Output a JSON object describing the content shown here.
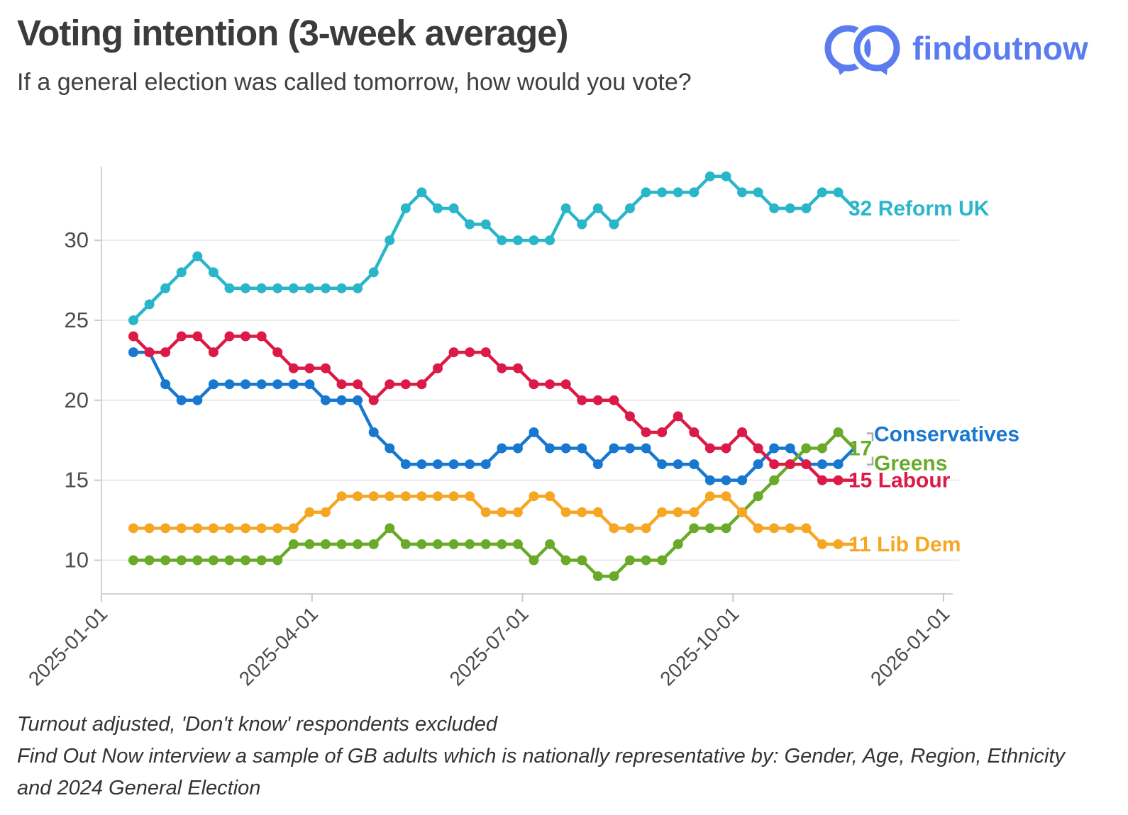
{
  "header": {
    "title": "Voting intention (3-week average)",
    "subtitle": "If a general election was called tomorrow, how would you vote?",
    "logo_text": "findoutnow"
  },
  "footer": {
    "lines": [
      "Turnout adjusted, 'Don't know' respondents excluded",
      "Find Out Now interview a sample of GB adults which is nationally representative by: Gender, Age, Region, Ethnicity",
      "and 2024 General Election"
    ]
  },
  "chart_data": {
    "type": "line",
    "title": "Voting intention (3-week average)",
    "xlabel": "",
    "ylabel": "",
    "grid": "horizontal",
    "legend_position": "right-end-labels",
    "x_tick_labels": [
      "2025-01-01",
      "2025-04-01",
      "2025-07-01",
      "2025-10-01",
      "2026-01-01"
    ],
    "y_ticks": [
      10,
      15,
      20,
      25,
      30
    ],
    "ylim": [
      8,
      35.5
    ],
    "shared_end_value_label": "17",
    "shared_end_value_for": [
      "Conservatives",
      "Greens"
    ],
    "series": [
      {
        "name": "Reform UK",
        "color": "#2ab6c9",
        "end_label": "32 Reform UK",
        "final_value": 32,
        "values": [
          25,
          26,
          27,
          28,
          29,
          28,
          27,
          27,
          27,
          27,
          27,
          27,
          27,
          27,
          27,
          28,
          30,
          32,
          33,
          32,
          32,
          31,
          31,
          30,
          30,
          30,
          30,
          32,
          31,
          32,
          31,
          32,
          33,
          33,
          33,
          33,
          34,
          34,
          33,
          33,
          32,
          32,
          32,
          33,
          33,
          32
        ]
      },
      {
        "name": "Conservatives",
        "color": "#1878cf",
        "end_label": "Conservatives",
        "final_value": 17,
        "values": [
          23,
          23,
          21,
          20,
          20,
          21,
          21,
          21,
          21,
          21,
          21,
          21,
          20,
          20,
          20,
          18,
          17,
          16,
          16,
          16,
          16,
          16,
          16,
          17,
          17,
          18,
          17,
          17,
          17,
          16,
          17,
          17,
          17,
          16,
          16,
          16,
          15,
          15,
          15,
          16,
          17,
          17,
          16,
          16,
          16,
          17
        ]
      },
      {
        "name": "Greens",
        "color": "#6aaa2a",
        "end_label": "Greens",
        "final_value": 17,
        "values": [
          10,
          10,
          10,
          10,
          10,
          10,
          10,
          10,
          10,
          10,
          11,
          11,
          11,
          11,
          11,
          11,
          12,
          11,
          11,
          11,
          11,
          11,
          11,
          11,
          11,
          10,
          11,
          10,
          10,
          9,
          9,
          10,
          10,
          10,
          11,
          12,
          12,
          12,
          13,
          14,
          15,
          16,
          17,
          17,
          18,
          17
        ]
      },
      {
        "name": "Labour",
        "color": "#dc1a47",
        "end_label": "15 Labour",
        "final_value": 15,
        "values": [
          24,
          23,
          23,
          24,
          24,
          23,
          24,
          24,
          24,
          23,
          22,
          22,
          22,
          21,
          21,
          20,
          21,
          21,
          21,
          22,
          23,
          23,
          23,
          22,
          22,
          21,
          21,
          21,
          20,
          20,
          20,
          19,
          18,
          18,
          19,
          18,
          17,
          17,
          18,
          17,
          16,
          16,
          16,
          15,
          15,
          15
        ]
      },
      {
        "name": "Lib Dem",
        "color": "#f6a623",
        "end_label": "11 Lib Dem",
        "final_value": 11,
        "values": [
          12,
          12,
          12,
          12,
          12,
          12,
          12,
          12,
          12,
          12,
          12,
          13,
          13,
          14,
          14,
          14,
          14,
          14,
          14,
          14,
          14,
          14,
          13,
          13,
          13,
          14,
          14,
          13,
          13,
          13,
          12,
          12,
          12,
          13,
          13,
          13,
          14,
          14,
          13,
          12,
          12,
          12,
          12,
          11,
          11,
          11
        ]
      }
    ]
  }
}
